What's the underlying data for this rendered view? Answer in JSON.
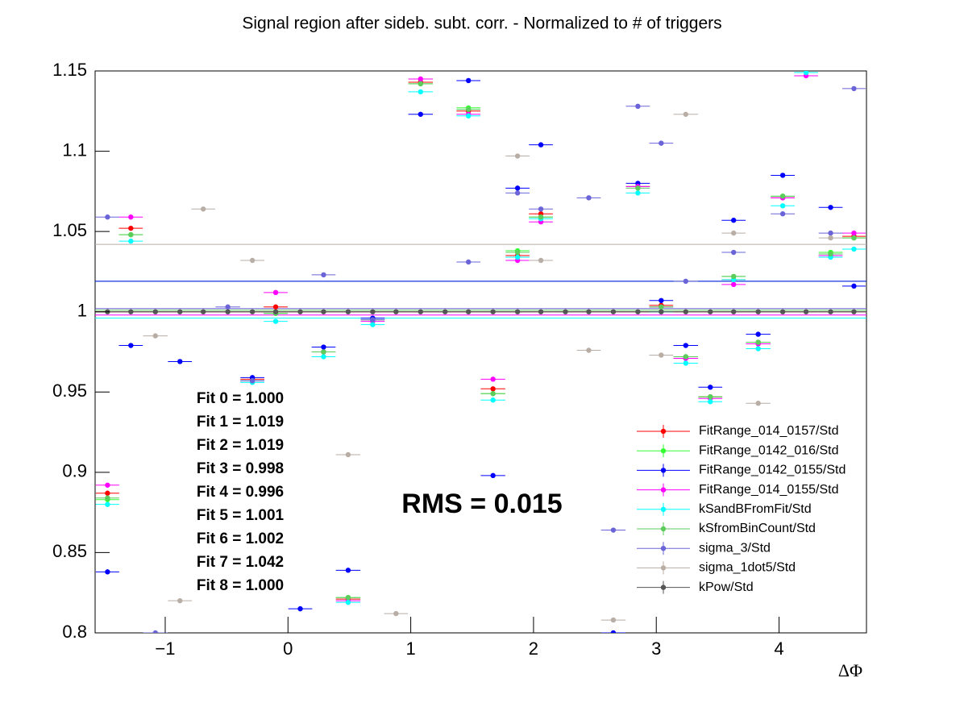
{
  "chart_data": {
    "type": "errorbar",
    "title": "Signal region after sideb. subt. corr. - Normalized to # of triggers",
    "x_label": "ΔΦ",
    "annotation": "RMS = 0.015",
    "x": [
      -1.47,
      -1.28,
      -1.08,
      -0.88,
      -0.69,
      -0.49,
      -0.29,
      -0.1,
      0.1,
      0.29,
      0.49,
      0.69,
      0.88,
      1.08,
      1.28,
      1.47,
      1.67,
      1.87,
      2.06,
      2.26,
      2.45,
      2.65,
      2.85,
      3.04,
      3.24,
      3.44,
      3.63,
      3.83,
      4.03,
      4.22,
      4.42,
      4.61
    ],
    "xlim": [
      -1.571,
      4.712
    ],
    "ylim": [
      0.8,
      1.15
    ],
    "xticks": [
      {
        "value": -1,
        "label": "−1"
      },
      0,
      1,
      2,
      3,
      4
    ],
    "yticks": [
      0.8,
      0.85,
      0.9,
      0.95,
      1,
      1.05,
      1.1,
      1.15
    ],
    "legend": "lower right",
    "series": [
      {
        "name": "FitRange_014_0157/Std",
        "color": "#ff0000",
        "fit": 1.0,
        "fit_label": "Fit 0 = 1.000",
        "values": [
          0.887,
          1.052,
          null,
          null,
          null,
          null,
          0.958,
          1.003,
          null,
          0.975,
          0.821,
          0.995,
          null,
          1.143,
          null,
          1.125,
          0.952,
          1.035,
          1.061,
          null,
          null,
          null,
          1.078,
          1.004,
          0.971,
          0.947,
          1.02,
          0.98,
          1.071,
          null,
          1.035,
          1.047
        ]
      },
      {
        "name": "FitRange_0142_016/Std",
        "color": "#33ff33",
        "fit": 1.019,
        "fit_label": "Fit 1 = 1.019",
        "values": [
          0.883,
          1.048,
          null,
          null,
          null,
          null,
          0.957,
          0.999,
          null,
          0.975,
          0.822,
          0.995,
          null,
          1.142,
          null,
          1.127,
          0.949,
          1.038,
          1.059,
          null,
          null,
          null,
          1.078,
          1.003,
          0.972,
          0.947,
          1.022,
          0.981,
          1.072,
          null,
          1.037,
          1.046
        ]
      },
      {
        "name": "FitRange_0142_0155/Std",
        "color": "#0000ff",
        "fit": 1.019,
        "fit_label": "Fit 2 = 1.019",
        "values": [
          0.838,
          0.979,
          null,
          0.969,
          null,
          null,
          0.959,
          null,
          0.815,
          0.978,
          0.839,
          0.996,
          null,
          1.123,
          null,
          1.144,
          0.898,
          1.077,
          1.104,
          null,
          null,
          0.8,
          1.08,
          1.007,
          0.979,
          0.953,
          1.057,
          0.986,
          1.085,
          null,
          1.065,
          1.016
        ]
      },
      {
        "name": "FitRange_014_0155/Std",
        "color": "#ff00ff",
        "fit": 0.998,
        "fit_label": "Fit 3 = 0.998",
        "values": [
          0.892,
          1.059,
          null,
          null,
          null,
          null,
          0.957,
          1.012,
          null,
          0.975,
          0.82,
          0.994,
          null,
          1.145,
          null,
          1.123,
          0.958,
          1.032,
          1.056,
          null,
          null,
          null,
          1.078,
          1.003,
          0.971,
          0.946,
          1.017,
          0.98,
          1.071,
          1.147,
          1.035,
          1.049
        ]
      },
      {
        "name": "kSandBFromFit/Std",
        "color": "#00ffff",
        "fit": 0.996,
        "fit_label": "Fit 4 = 0.996",
        "values": [
          0.88,
          1.044,
          null,
          null,
          null,
          null,
          0.956,
          0.994,
          null,
          0.972,
          0.819,
          0.992,
          null,
          1.137,
          null,
          1.122,
          0.945,
          1.034,
          1.058,
          null,
          null,
          null,
          1.074,
          1.0,
          0.968,
          0.944,
          1.02,
          0.977,
          1.066,
          1.149,
          1.034,
          1.039
        ]
      },
      {
        "name": "kSfromBinCount/Std",
        "color": "#5ccc5c",
        "fit": 1.001,
        "fit_label": "Fit 5 = 1.001",
        "values": [
          0.884,
          1.048,
          null,
          null,
          null,
          null,
          0.957,
          0.999,
          null,
          0.975,
          0.822,
          0.995,
          null,
          1.142,
          null,
          1.126,
          0.949,
          1.037,
          1.059,
          null,
          null,
          null,
          1.077,
          1.003,
          0.972,
          0.947,
          1.022,
          0.981,
          1.072,
          null,
          1.036,
          1.046
        ]
      },
      {
        "name": "sigma_3/Std",
        "color": "#6a64d8",
        "fit": 1.002,
        "fit_label": "Fit 6 = 1.002",
        "values": [
          1.059,
          null,
          0.8,
          null,
          null,
          1.003,
          0.957,
          null,
          null,
          1.023,
          null,
          0.995,
          null,
          null,
          null,
          1.031,
          null,
          1.074,
          1.064,
          null,
          1.071,
          0.864,
          1.128,
          1.105,
          1.019,
          null,
          1.037,
          null,
          1.061,
          null,
          1.049,
          1.139
        ]
      },
      {
        "name": "sigma_1dot5/Std",
        "color": "#b8aea6",
        "fit": 1.042,
        "fit_label": "Fit 7 = 1.042",
        "values": [
          null,
          null,
          0.985,
          0.82,
          1.064,
          null,
          1.032,
          null,
          null,
          null,
          0.911,
          null,
          0.812,
          null,
          null,
          null,
          null,
          1.097,
          1.032,
          null,
          0.976,
          0.808,
          null,
          0.973,
          1.123,
          null,
          1.049,
          0.943,
          null,
          null,
          1.046,
          null
        ]
      },
      {
        "name": "kPow/Std",
        "color": "#555555",
        "fit": 1.0,
        "fit_label": "Fit 8 = 1.000",
        "values": [
          1,
          1,
          1,
          1,
          1,
          1,
          1,
          1,
          1,
          1,
          1,
          1,
          1,
          1,
          1,
          1,
          1,
          1,
          1,
          1,
          1,
          1,
          1,
          1,
          1,
          1,
          1,
          1,
          1,
          1,
          1,
          1
        ]
      }
    ]
  }
}
